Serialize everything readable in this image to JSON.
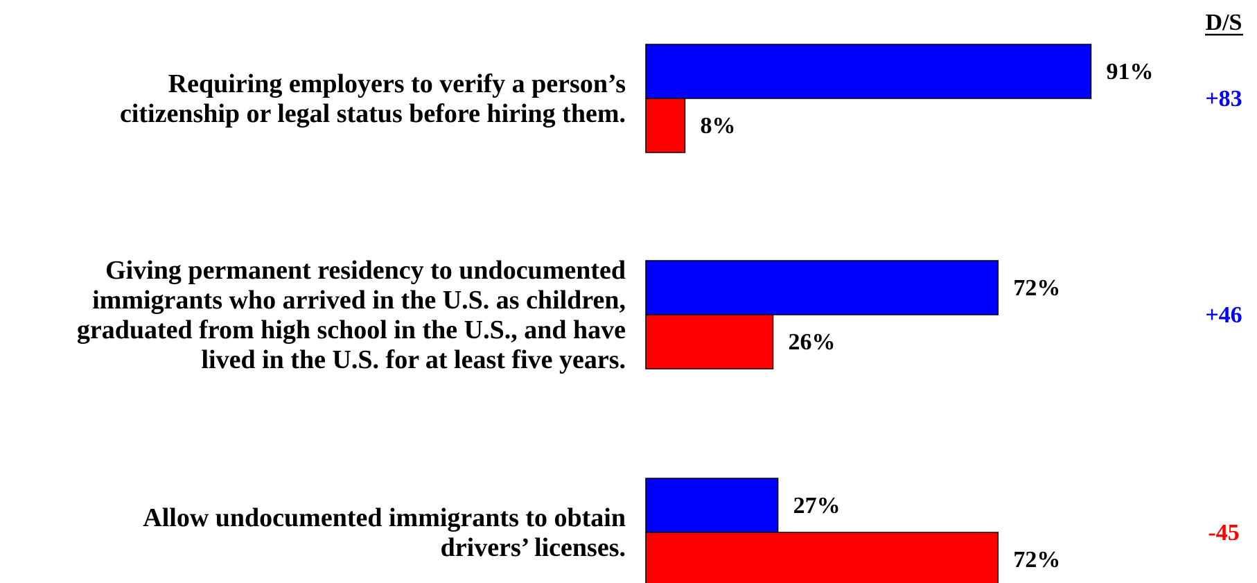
{
  "chart_data": {
    "type": "bar",
    "orientation": "horizontal",
    "header_label": "D/S",
    "categories": [
      "Requiring employers to verify a person’s citizenship or legal status before hiring them.",
      "Giving permanent residency to undocumented immigrants who arrived in the U.S. as children, graduated from high school in the U.S., and have lived in the U.S. for at least five years.",
      "Allow undocumented immigrants to obtain drivers’ licenses."
    ],
    "category_lines": [
      [
        "Requiring employers to verify a person’s",
        "citizenship or legal status before hiring them."
      ],
      [
        "Giving permanent residency to undocumented",
        "immigrants who arrived in the U.S. as children,",
        "graduated from high school in the U.S., and have",
        "lived in the U.S. for at least five years."
      ],
      [
        "Allow undocumented immigrants to obtain",
        "drivers’ licenses."
      ]
    ],
    "series": [
      {
        "values": [
          91,
          72,
          27
        ],
        "labels": [
          "91%",
          "72%",
          "27%"
        ],
        "color": "#0000ff"
      },
      {
        "values": [
          8,
          26,
          72
        ],
        "labels": [
          "8%",
          "26%",
          "72%"
        ],
        "color": "#ff0000"
      }
    ],
    "differences": [
      {
        "label": "+83",
        "color": "#0000ff"
      },
      {
        "label": "+46",
        "color": "#0000ff"
      },
      {
        "label": "-45",
        "color": "#ff0000"
      }
    ],
    "xlim": [
      0,
      100
    ],
    "grid": false,
    "legend": "none"
  }
}
